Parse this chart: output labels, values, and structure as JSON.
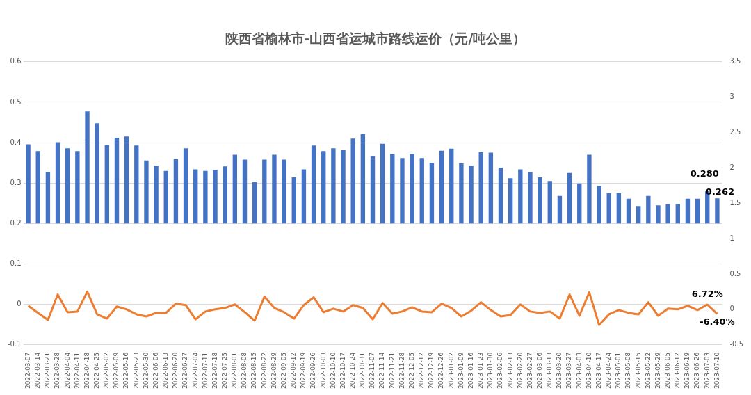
{
  "chart_data": {
    "type": "bar",
    "title": "陕西省榆林市-山西省运城市路线运价（元/吨公里）",
    "categories": [
      "2022-03-07",
      "2022-03-14",
      "2022-03-21",
      "2022-03-28",
      "2022-04-04",
      "2022-04-11",
      "2022-04-18",
      "2022-04-25",
      "2022-05-02",
      "2022-05-09",
      "2022-05-16",
      "2022-05-23",
      "2022-05-30",
      "2022-06-06",
      "2022-06-13",
      "2022-06-20",
      "2022-06-27",
      "2022-07-04",
      "2022-07-11",
      "2022-07-18",
      "2022-07-25",
      "2022-08-01",
      "2022-08-08",
      "2022-08-15",
      "2022-08-22",
      "2022-08-29",
      "2022-09-05",
      "2022-09-12",
      "2022-09-19",
      "2022-09-26",
      "2022-10-03",
      "2022-10-10",
      "2022-10-17",
      "2022-10-24",
      "2022-10-31",
      "2022-11-07",
      "2022-11-14",
      "2022-11-21",
      "2022-11-28",
      "2022-12-05",
      "2022-12-12",
      "2022-12-19",
      "2022-12-26",
      "2023-01-02",
      "2023-01-09",
      "2023-01-16",
      "2023-01-23",
      "2023-01-30",
      "2023-02-06",
      "2023-02-13",
      "2023-02-20",
      "2023-02-27",
      "2023-03-06",
      "2023-03-13",
      "2023-03-20",
      "2023-03-27",
      "2023-04-03",
      "2023-04-10",
      "2023-04-17",
      "2023-04-24",
      "2023-05-01",
      "2023-05-08",
      "2023-05-15",
      "2023-05-22",
      "2023-05-29",
      "2023-06-05",
      "2023-06-12",
      "2023-06-19",
      "2023-06-26",
      "2023-07-03",
      "2023-07-10"
    ],
    "series": [
      {
        "color": "#4472c4",
        "base": [
          0.2,
          0.2,
          0.2,
          0.2,
          0.2,
          0.2,
          0.2,
          0.2,
          0.2,
          0.2,
          0.2,
          0.2,
          0.2,
          0.2,
          0.2,
          0.2,
          0.2,
          0.2,
          0.2,
          0.2,
          0.2,
          0.2,
          0.2,
          0.2,
          0.2,
          0.2,
          0.2,
          0.2,
          0.2,
          0.2,
          0.2,
          0.2,
          0.2,
          0.2,
          0.2,
          0.2,
          0.2,
          0.2,
          0.2,
          0.2,
          0.2,
          0.2,
          0.2,
          0.2,
          0.2,
          0.2,
          0.2,
          0.2,
          0.2,
          0.2,
          0.2,
          0.2,
          0.2,
          0.2,
          0.2,
          0.2,
          0.2,
          0.2,
          0.2,
          0.2,
          0.2,
          0.2,
          0.2,
          0.2,
          0.2,
          0.2,
          0.2,
          0.2,
          0.2,
          0.2,
          0.2
        ],
        "values": [
          0.196,
          0.179,
          0.128,
          0.201,
          0.186,
          0.179,
          0.277,
          0.248,
          0.194,
          0.212,
          0.215,
          0.193,
          0.156,
          0.143,
          0.13,
          0.159,
          0.186,
          0.134,
          0.13,
          0.133,
          0.141,
          0.17,
          0.158,
          0.102,
          0.158,
          0.17,
          0.158,
          0.114,
          0.134,
          0.193,
          0.179,
          0.186,
          0.181,
          0.21,
          0.221,
          0.166,
          0.197,
          0.172,
          0.162,
          0.172,
          0.162,
          0.15,
          0.18,
          0.185,
          0.149,
          0.143,
          0.176,
          0.175,
          0.138,
          0.112,
          0.134,
          0.127,
          0.114,
          0.105,
          0.068,
          0.125,
          0.099,
          0.17,
          0.093,
          0.075,
          0.075,
          0.061,
          0.043,
          0.068,
          0.045,
          0.048,
          0.048,
          0.061,
          0.061,
          0.08,
          0.062
        ],
        "value_labels": [
          null,
          null,
          null,
          null,
          null,
          null,
          null,
          null,
          null,
          null,
          null,
          null,
          null,
          null,
          null,
          null,
          null,
          null,
          null,
          null,
          null,
          null,
          null,
          null,
          null,
          null,
          null,
          null,
          null,
          null,
          null,
          null,
          null,
          null,
          null,
          null,
          null,
          null,
          null,
          null,
          null,
          null,
          null,
          null,
          null,
          null,
          null,
          null,
          null,
          null,
          null,
          null,
          null,
          null,
          null,
          null,
          null,
          null,
          null,
          null,
          null,
          null,
          null,
          null,
          null,
          null,
          null,
          null,
          null,
          "0.280",
          "0.262"
        ]
      },
      {
        "type": "line",
        "axis": "y2",
        "color": "#ed7d31",
        "values": [
          0.05,
          -0.05,
          -0.15,
          0.21,
          -0.04,
          -0.03,
          0.25,
          -0.07,
          -0.13,
          0.04,
          0.0,
          -0.07,
          -0.1,
          -0.05,
          -0.05,
          0.08,
          0.06,
          -0.14,
          -0.03,
          0.0,
          0.02,
          0.07,
          -0.04,
          -0.16,
          0.18,
          0.02,
          -0.04,
          -0.13,
          0.06,
          0.17,
          -0.04,
          0.01,
          -0.03,
          0.06,
          0.02,
          -0.14,
          0.09,
          -0.06,
          -0.03,
          0.03,
          -0.03,
          -0.04,
          0.08,
          0.02,
          -0.1,
          -0.02,
          0.1,
          -0.01,
          -0.1,
          -0.08,
          0.07,
          -0.03,
          -0.05,
          -0.03,
          -0.13,
          0.21,
          -0.09,
          0.24,
          -0.22,
          -0.07,
          -0.01,
          -0.05,
          -0.07,
          0.1,
          -0.09,
          0.01,
          0.0,
          0.05,
          -0.01,
          0.0672,
          -0.064
        ],
        "value_labels": [
          null,
          null,
          null,
          null,
          null,
          null,
          null,
          null,
          null,
          null,
          null,
          null,
          null,
          null,
          null,
          null,
          null,
          null,
          null,
          null,
          null,
          null,
          null,
          null,
          null,
          null,
          null,
          null,
          null,
          null,
          null,
          null,
          null,
          null,
          null,
          null,
          null,
          null,
          null,
          null,
          null,
          null,
          null,
          null,
          null,
          null,
          null,
          null,
          null,
          null,
          null,
          null,
          null,
          null,
          null,
          null,
          null,
          null,
          null,
          null,
          null,
          null,
          null,
          null,
          null,
          null,
          null,
          null,
          null,
          "6.72%",
          "-6.40%"
        ]
      }
    ],
    "ylim": [
      -0.1,
      0.6
    ],
    "yticks": [
      -0.1,
      0,
      0.1,
      0.2,
      0.3,
      0.4,
      0.5,
      0.6
    ],
    "y2lim": [
      -0.5,
      3.5
    ],
    "y2ticks": [
      -0.5,
      0,
      0.5,
      1,
      1.5,
      2,
      2.5,
      3,
      3.5
    ],
    "grid": "y",
    "legend": false,
    "marker": "none",
    "line_style": "solid"
  }
}
